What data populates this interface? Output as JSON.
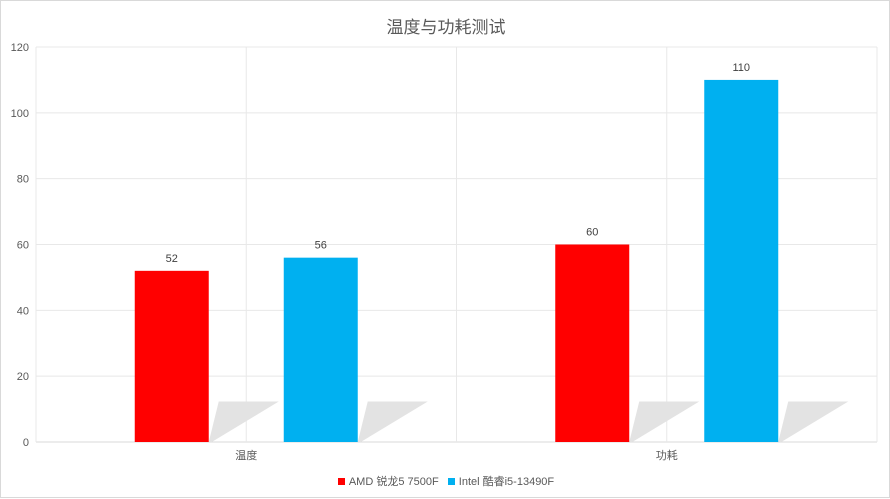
{
  "chart_data": {
    "type": "bar",
    "title": "温度与功耗测试",
    "categories": [
      "温度",
      "功耗"
    ],
    "series": [
      {
        "name": "AMD 锐龙5 7500F",
        "values": [
          52,
          60
        ],
        "color": "#ff0000"
      },
      {
        "name": "Intel 酷睿i5-13490F",
        "values": [
          56,
          110
        ],
        "color": "#00b0f0"
      }
    ],
    "ylim": [
      0,
      120
    ],
    "yticks": [
      0,
      20,
      40,
      60,
      80,
      100,
      120
    ],
    "grid": true,
    "legend_position": "bottom"
  }
}
